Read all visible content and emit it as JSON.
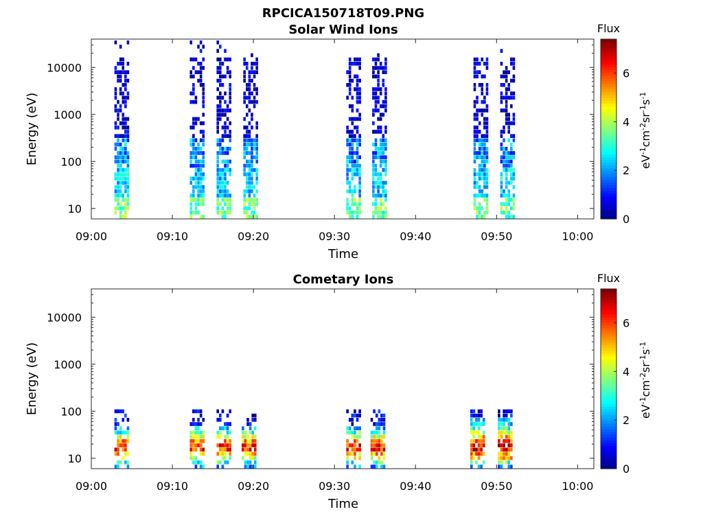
{
  "figure_title": "RPCICA150718T09.PNG",
  "colormap": [
    "#00007f",
    "#0000ff",
    "#0080ff",
    "#00ffff",
    "#80ff80",
    "#ffff00",
    "#ff8000",
    "#ff0000",
    "#7f0000"
  ],
  "chart_data": [
    {
      "type": "heatmap",
      "title": "Solar Wind Ions",
      "xlabel": "Time",
      "ylabel": "Energy (eV)",
      "x_ticks": [
        "09:00",
        "09:10",
        "09:20",
        "09:30",
        "09:40",
        "09:50",
        "10:00"
      ],
      "y_ticks": [
        "10",
        "100",
        "1000",
        "10000"
      ],
      "y_scale": "log",
      "x_range_min": [
        0,
        62
      ],
      "y_range_ev": [
        6,
        40000
      ],
      "colorbar": {
        "title": "Flux",
        "label_parts": [
          "eV",
          "-1",
          "cm",
          "-2",
          "sr",
          "-1",
          "s",
          "-1"
        ],
        "ticks": [
          "0",
          "2",
          "4",
          "6"
        ],
        "range": [
          0,
          7.4
        ]
      },
      "bursts_min_center": [
        3.7,
        13.0,
        16.3,
        19.6,
        32.3,
        35.5,
        48.0,
        51.3
      ]
    },
    {
      "type": "heatmap",
      "title": "Cometary Ions",
      "xlabel": "Time",
      "ylabel": "Energy (eV)",
      "x_ticks": [
        "09:00",
        "09:10",
        "09:20",
        "09:30",
        "09:40",
        "09:50",
        "10:00"
      ],
      "y_ticks": [
        "10",
        "100",
        "1000",
        "10000"
      ],
      "y_scale": "log",
      "x_range_min": [
        0,
        62
      ],
      "y_range_ev": [
        6,
        40000
      ],
      "colorbar": {
        "title": "Flux",
        "label_parts": [
          "eV",
          "-1",
          "cm",
          "-2",
          "sr",
          "-1",
          "s",
          "-1"
        ],
        "ticks": [
          "0",
          "2",
          "4",
          "6"
        ],
        "range": [
          0,
          7.4
        ]
      },
      "bursts_min_center": [
        3.7,
        13.0,
        16.3,
        19.4,
        32.3,
        35.3,
        47.6,
        51.0
      ]
    }
  ]
}
